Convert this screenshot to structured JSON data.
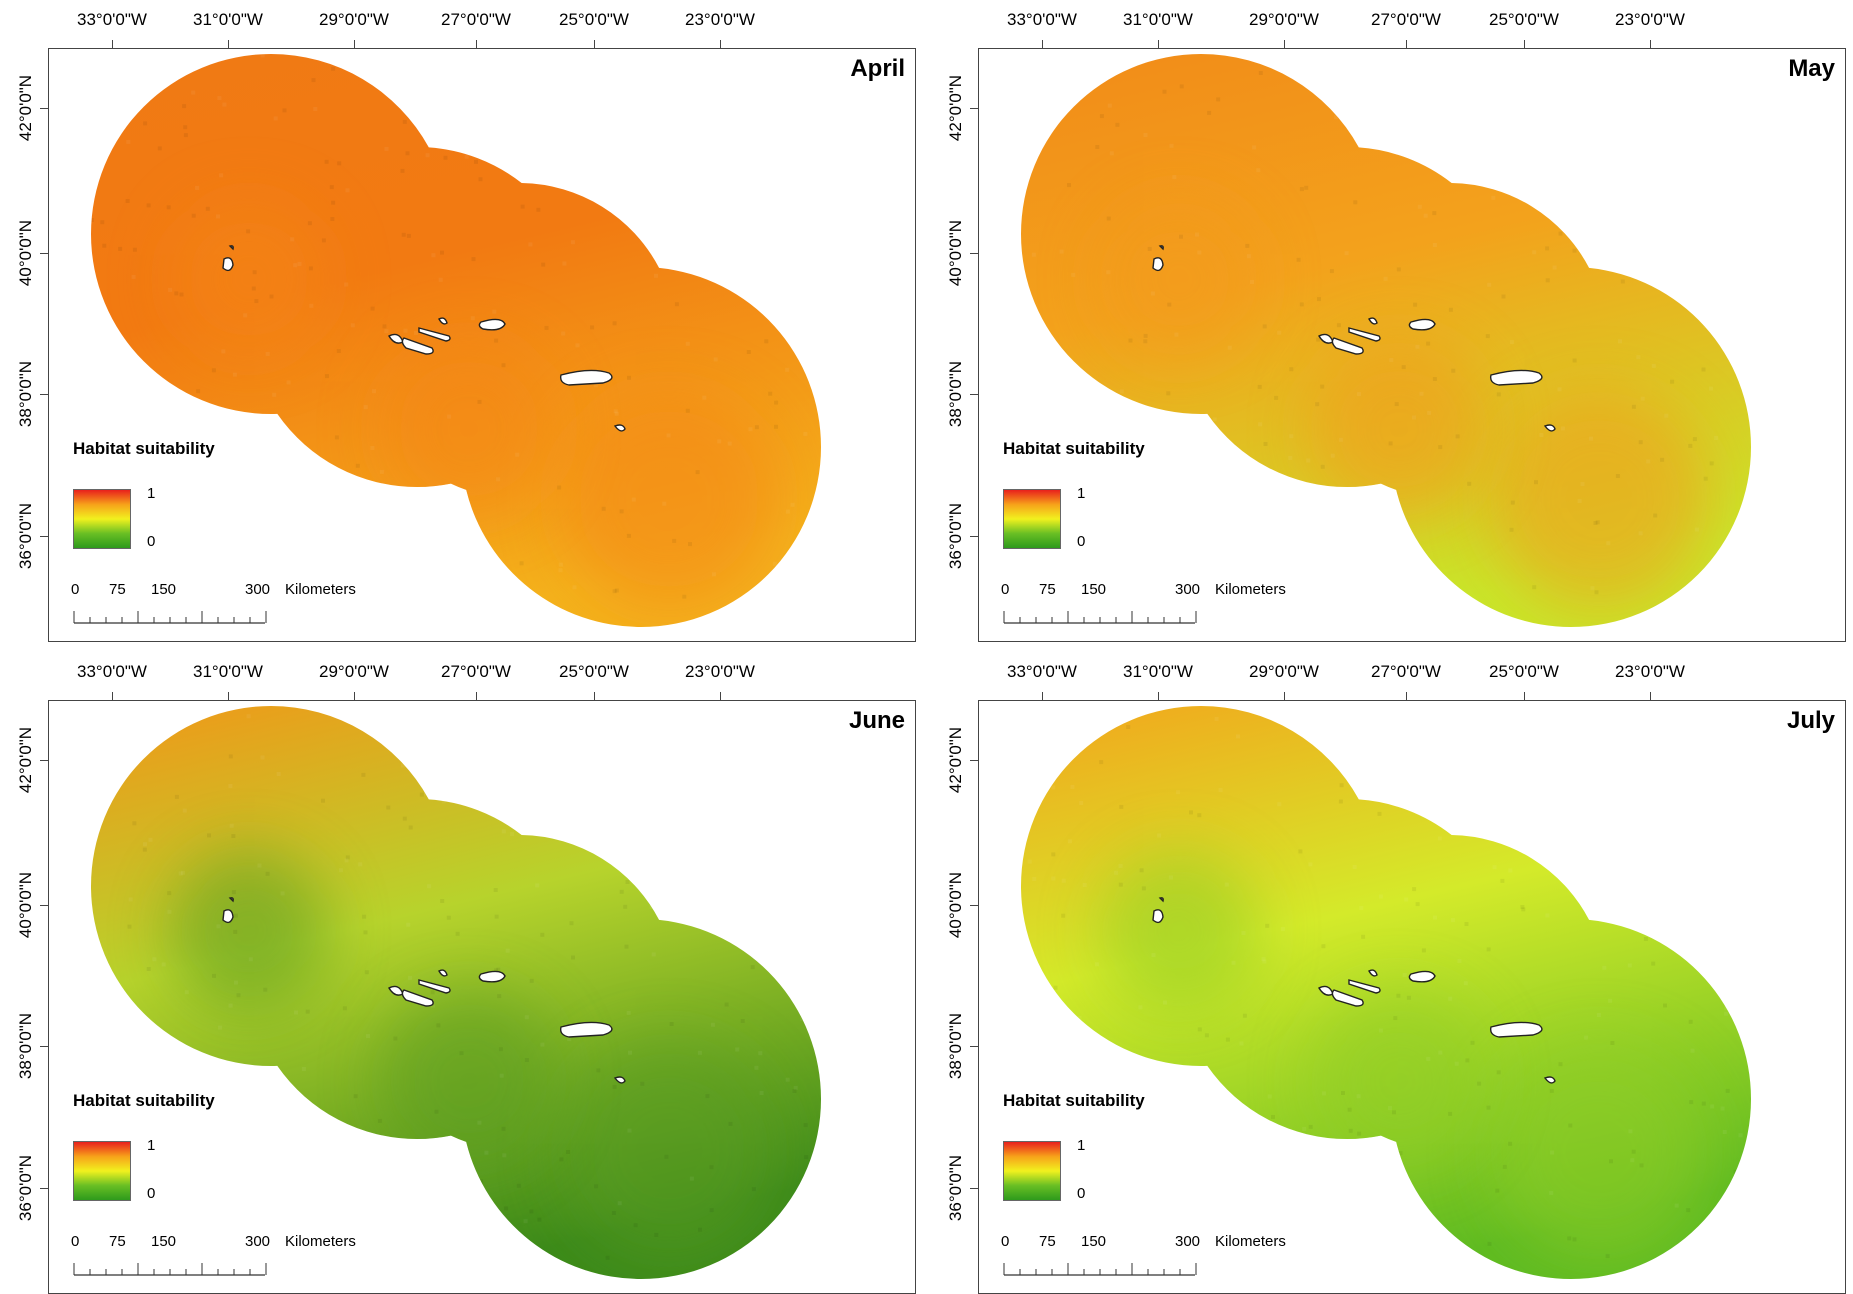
{
  "lon_labels": [
    "33°0'0\"W",
    "31°0'0\"W",
    "29°0'0\"W",
    "27°0'0\"W",
    "25°0'0\"W",
    "23°0'0\"W"
  ],
  "lat_labels": [
    "42°0'0\"N",
    "40°0'0\"N",
    "38°0'0\"N",
    "36°0'0\"N"
  ],
  "legend": {
    "title": "Habitat suitability",
    "max": "1",
    "min": "0",
    "colors": [
      "#e8201c",
      "#f7a21a",
      "#f1f11e",
      "#69bf24",
      "#2e9a1c"
    ]
  },
  "scale": {
    "labels": [
      "0",
      "75",
      "150",
      "300"
    ],
    "unit": "Kilometers"
  },
  "panels": [
    {
      "month": "April",
      "suitability": 0.72,
      "colors": {
        "north": "#f07a14",
        "center": "#f27a12",
        "south": "#f4b21c",
        "blob": "#f48616"
      }
    },
    {
      "month": "May",
      "suitability": 0.6,
      "colors": {
        "north": "#f28a18",
        "center": "#f3a21c",
        "south": "#c9e62a",
        "blob": "#f39a1a"
      }
    },
    {
      "month": "June",
      "suitability": 0.3,
      "colors": {
        "north": "#f49418",
        "center": "#b7d32c",
        "south": "#3c8a1a",
        "blob": "#5a9c22"
      }
    },
    {
      "month": "July",
      "suitability": 0.42,
      "colors": {
        "north": "#f4a21c",
        "center": "#d4ea2a",
        "south": "#5fbb22",
        "blob": "#90cc26"
      }
    }
  ]
}
